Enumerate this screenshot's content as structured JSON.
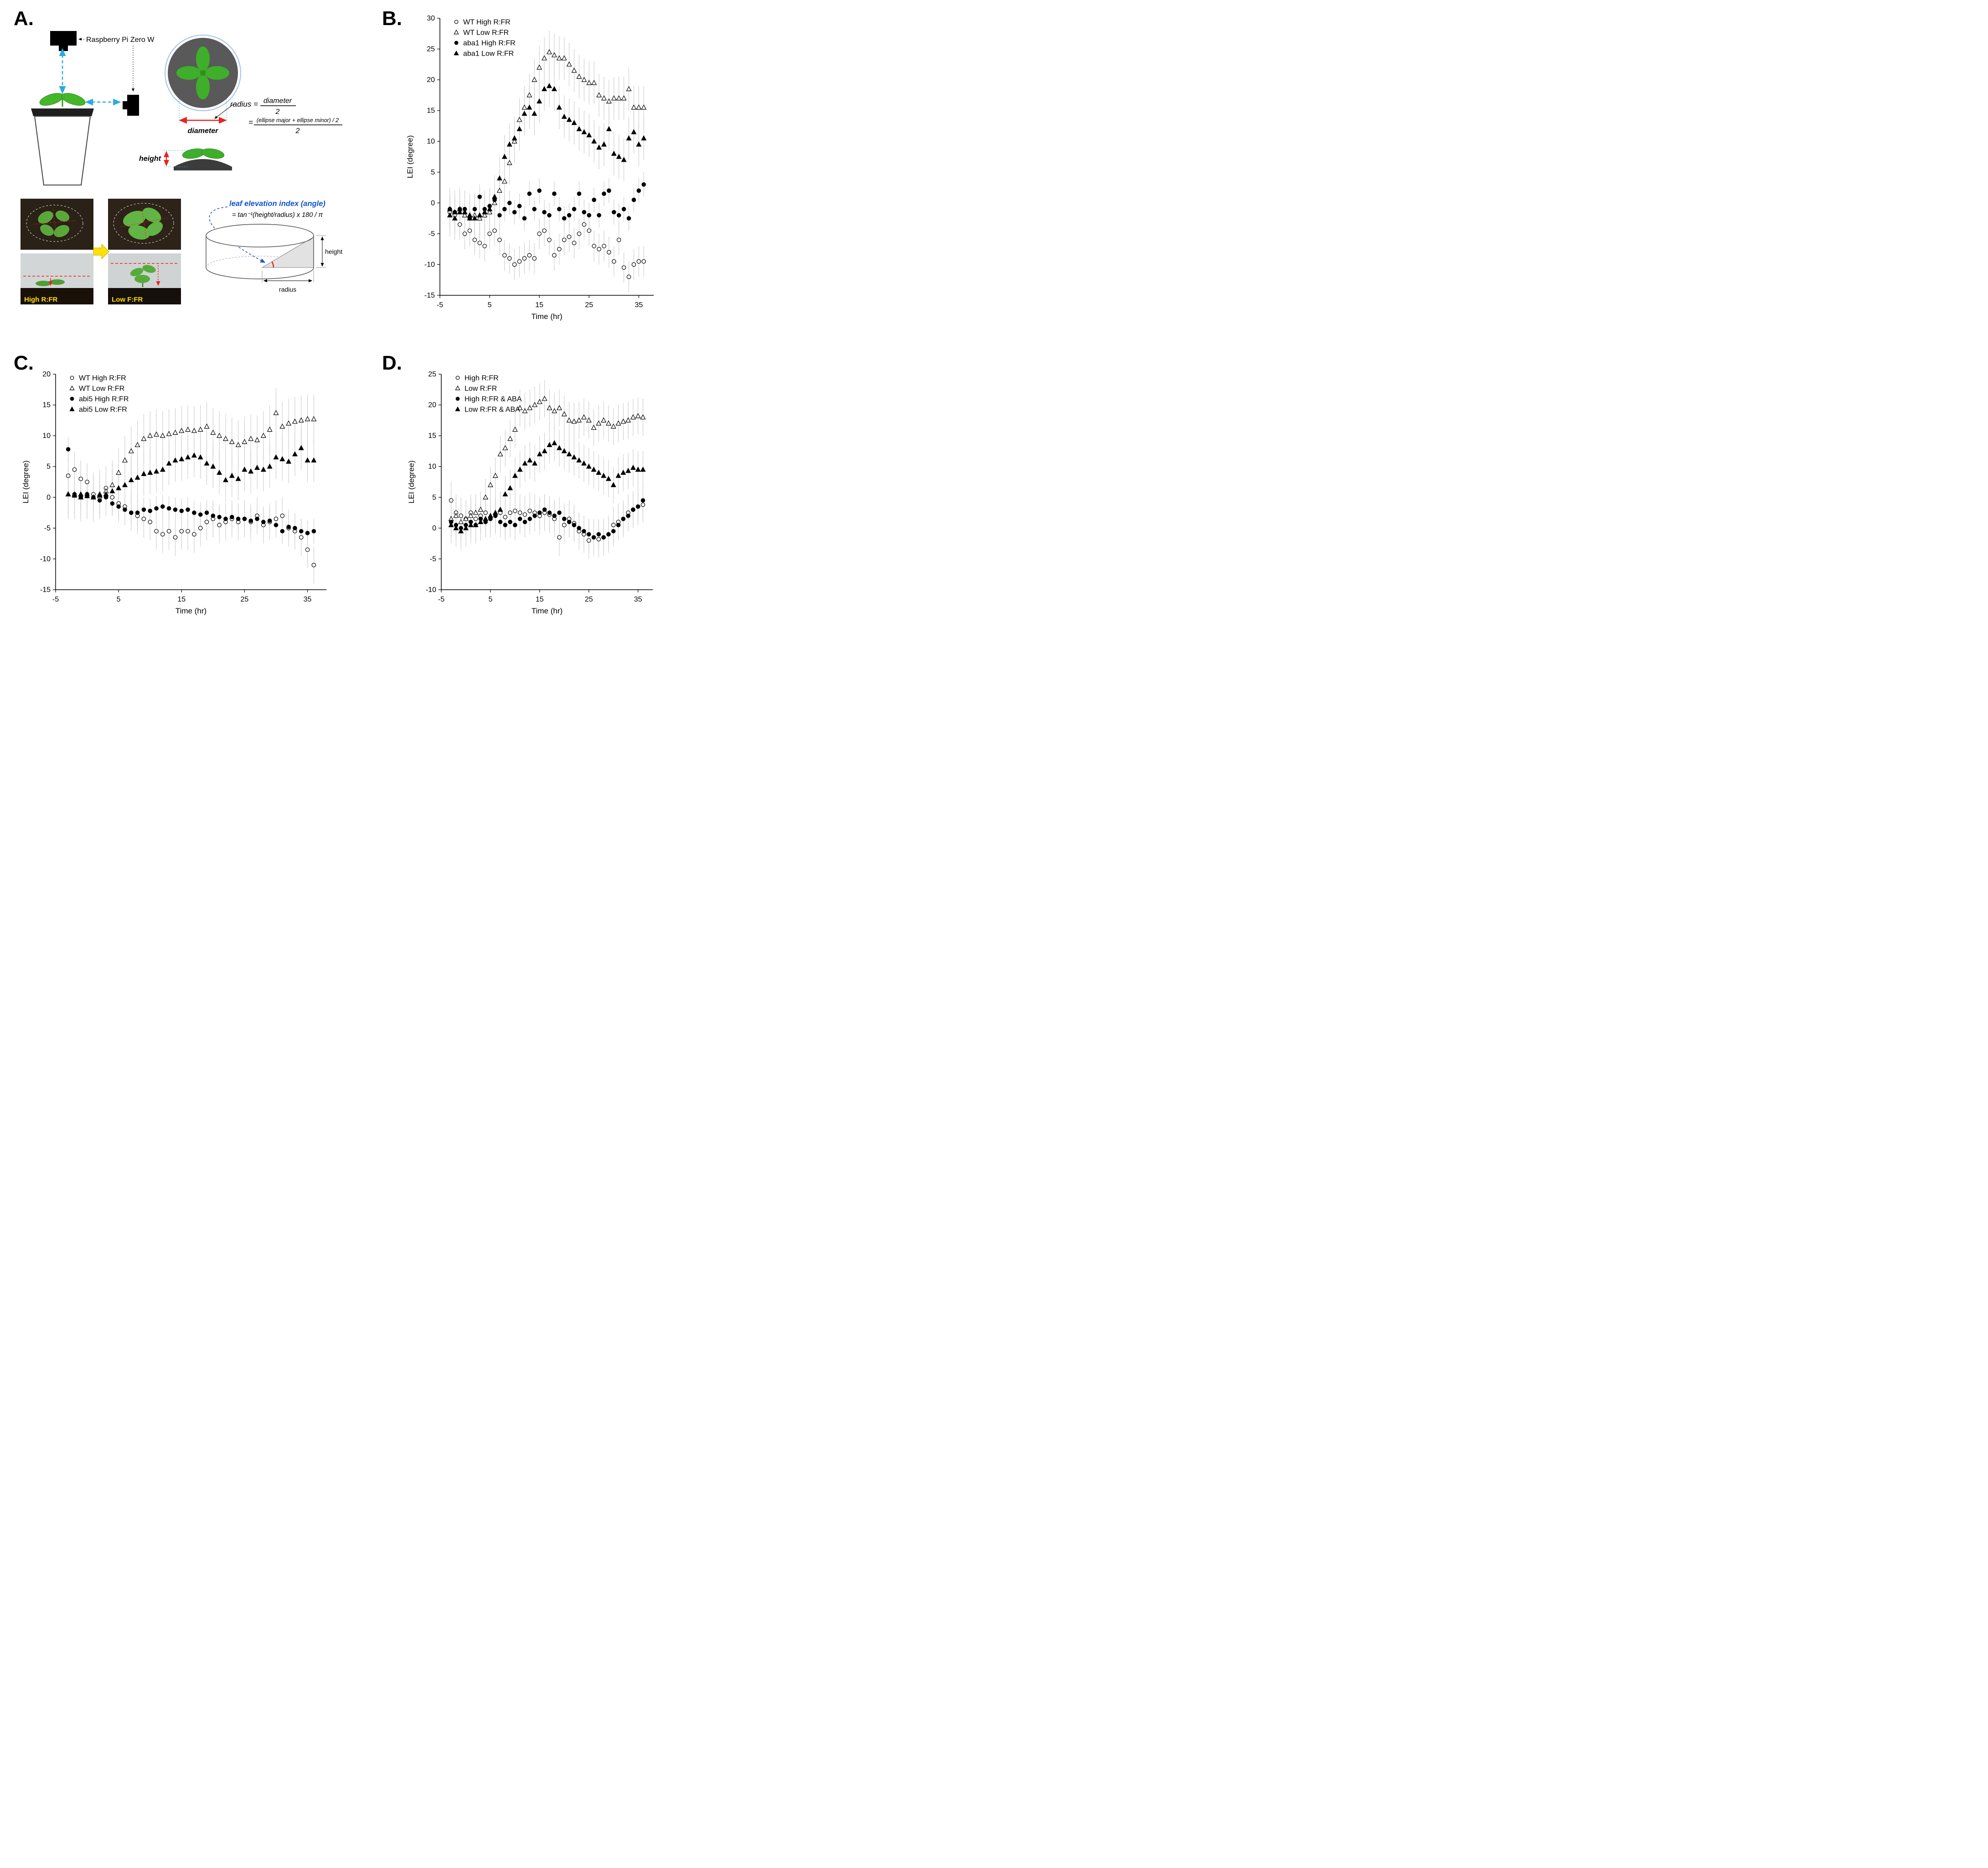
{
  "panel_labels": {
    "a": "A.",
    "b": "B.",
    "c": "C.",
    "d": "D."
  },
  "panel_a": {
    "camera_label": "Raspberry Pi Zero W",
    "radius_prefix": "radius =",
    "frac1_num": "diameter",
    "frac1_den": "2",
    "eq2_prefix": "=",
    "frac2_num": "(ellipse major + ellipse minor) / 2",
    "frac2_den": "2",
    "diameter_label": "diameter",
    "height_label": "height",
    "lei_title": "leaf elevation index (angle)",
    "lei_formula": "= tan⁻¹(height/radius)  x  180 / π",
    "photo_high_label": "High R:FR",
    "photo_low_label": "Low F:FR",
    "cyl_height_label": "height",
    "cyl_radius_label": "radius"
  },
  "chart_data": [
    {
      "id": "B",
      "type": "scatter",
      "xlabel": "Time (hr)",
      "ylabel": "LEI (degree)",
      "xlim": [
        -5,
        38
      ],
      "ylim": [
        -15,
        30
      ],
      "xticks": [
        -5,
        5,
        15,
        25,
        35
      ],
      "yticks": [
        -15,
        -10,
        -5,
        0,
        5,
        10,
        15,
        20,
        25,
        30
      ],
      "legend_position": "top-left",
      "grid": false,
      "x": [
        -3,
        -2,
        -1,
        0,
        1,
        2,
        3,
        4,
        5,
        6,
        7,
        8,
        9,
        10,
        11,
        12,
        13,
        14,
        15,
        16,
        17,
        18,
        19,
        20,
        21,
        22,
        23,
        24,
        25,
        26,
        27,
        28,
        29,
        30,
        31,
        32,
        33,
        34,
        35,
        36
      ],
      "series": [
        {
          "name": "WT High R:FR",
          "marker": "circle",
          "fill": "open",
          "err": 2.5,
          "y": [
            -1.5,
            -2,
            -3.5,
            -5,
            -4.5,
            -6,
            -6.5,
            -7,
            -5,
            -4.5,
            -6,
            -8.5,
            -9,
            -10,
            -9.5,
            -9,
            -8.5,
            -9,
            -5,
            -4.5,
            -6,
            -8.5,
            -7.5,
            -6,
            -5.5,
            -6.5,
            -5,
            -3.5,
            -4.5,
            -7,
            -7.5,
            -7,
            -8,
            -9.5,
            -6,
            -10.5,
            -12,
            -10,
            -9.5,
            -9.5
          ]
        },
        {
          "name": "WT Low R:FR",
          "marker": "triangle",
          "fill": "open",
          "err": 3.5,
          "y": [
            -1,
            -1.5,
            -1,
            -2,
            -2.5,
            -2,
            -2.5,
            -2,
            -1.5,
            0,
            2,
            3.5,
            6.5,
            10,
            13.5,
            15.5,
            17.5,
            20,
            22,
            23.5,
            24.5,
            24,
            23.5,
            23.5,
            22.5,
            21.5,
            20.5,
            20,
            19.5,
            19.5,
            17.5,
            17,
            16.5,
            17,
            17,
            17,
            18.5,
            15.5,
            15.5,
            15.5
          ]
        },
        {
          "name": "aba1 High R:FR",
          "marker": "circle",
          "fill": "solid",
          "err": 2,
          "y": [
            -1,
            -1.5,
            -1,
            -1,
            -2.5,
            -1,
            1,
            -1,
            -0.5,
            0.5,
            -2,
            -1,
            0,
            -1.5,
            -0.5,
            -2.5,
            1.5,
            -1,
            2,
            -1.5,
            -2,
            1.5,
            -1,
            -2.5,
            -2,
            -1,
            1.5,
            -1.5,
            -2,
            0.5,
            -2,
            1.5,
            2,
            -1.5,
            -2,
            -1,
            -2.5,
            0.5,
            2,
            3
          ]
        },
        {
          "name": "aba1 Low R:FR",
          "marker": "triangle",
          "fill": "solid",
          "err": 3.5,
          "y": [
            -2,
            -2.5,
            -1.5,
            -1.5,
            -2,
            -2.5,
            -2,
            -1.5,
            -1,
            1,
            4,
            7.5,
            9.5,
            10.5,
            12,
            14.5,
            15.5,
            14.5,
            16.5,
            18.5,
            19,
            18.5,
            15.5,
            14,
            13.5,
            13,
            12,
            11.5,
            11,
            10,
            9,
            9.5,
            12,
            8,
            7.5,
            7,
            10.5,
            11.5,
            9.5,
            10.5
          ]
        }
      ]
    },
    {
      "id": "C",
      "type": "scatter",
      "xlabel": "Time (hr)",
      "ylabel": "LEI (degree)",
      "xlim": [
        -5,
        38
      ],
      "ylim": [
        -15,
        20
      ],
      "xticks": [
        -5,
        5,
        15,
        25,
        35
      ],
      "yticks": [
        -15,
        -10,
        -5,
        0,
        5,
        10,
        15,
        20
      ],
      "legend_position": "top-left",
      "grid": false,
      "x": [
        -3,
        -2,
        -1,
        0,
        1,
        2,
        3,
        4,
        5,
        6,
        7,
        8,
        9,
        10,
        11,
        12,
        13,
        14,
        15,
        16,
        17,
        18,
        19,
        20,
        21,
        22,
        23,
        24,
        25,
        26,
        27,
        28,
        29,
        30,
        31,
        32,
        33,
        34,
        35,
        36
      ],
      "series": [
        {
          "name": "WT High R:FR",
          "marker": "circle",
          "fill": "open",
          "err": 3,
          "y": [
            3.5,
            4.5,
            3,
            2.5,
            0.5,
            0,
            1.5,
            0,
            -1,
            -1.5,
            -2.5,
            -3,
            -3.5,
            -4,
            -5.5,
            -6,
            -5.5,
            -6.5,
            -5.5,
            -5.5,
            -6,
            -5,
            -4,
            -3.5,
            -4.5,
            -4,
            -3.5,
            -4,
            -3.5,
            -4,
            -3,
            -4.5,
            -4,
            -3.5,
            -3,
            -5,
            -5.5,
            -6.5,
            -8.5,
            -11
          ]
        },
        {
          "name": "WT Low R:FR",
          "marker": "triangle",
          "fill": "open",
          "err": 4,
          "y": [
            0.5,
            0.5,
            0,
            0.5,
            0,
            0.5,
            1,
            2,
            4,
            6,
            7.5,
            8.5,
            9.5,
            10,
            10.2,
            10,
            10.3,
            10.5,
            10.8,
            11,
            10.8,
            11,
            11.5,
            10.5,
            10,
            9.5,
            9,
            8.5,
            9,
            9.5,
            9.3,
            10,
            11,
            13.7,
            11.5,
            12,
            12.3,
            12.5,
            12.7,
            12.7
          ]
        },
        {
          "name": "abi5 High R:FR",
          "marker": "circle",
          "fill": "solid",
          "err": 2,
          "y": [
            7.8,
            0.5,
            0,
            0.5,
            0,
            -0.5,
            0,
            -1,
            -1.5,
            -2,
            -2.5,
            -2.5,
            -2,
            -2.2,
            -1.8,
            -1.5,
            -1.8,
            -2,
            -2.2,
            -2,
            -2.5,
            -2.8,
            -2.5,
            -3,
            -3.2,
            -3.5,
            -3.2,
            -3.5,
            -3.5,
            -3.8,
            -3.5,
            -4,
            -3.8,
            -4.5,
            -5.5,
            -4.8,
            -5,
            -5.5,
            -5.8,
            -5.5
          ]
        },
        {
          "name": "abi5 Low R:FR",
          "marker": "triangle",
          "fill": "solid",
          "err": 3.5,
          "y": [
            0.5,
            0.3,
            0.5,
            0.2,
            0,
            0.3,
            0.5,
            1,
            1.5,
            2,
            2.8,
            3.2,
            3.8,
            4,
            4.2,
            4.5,
            5.5,
            6,
            6.2,
            6.5,
            6.8,
            6.5,
            5.5,
            5,
            4,
            2.8,
            3.5,
            3,
            4.5,
            4.2,
            4.8,
            4.5,
            5,
            6.5,
            6.2,
            5.8,
            7,
            8,
            6,
            6
          ]
        }
      ]
    },
    {
      "id": "D",
      "type": "scatter",
      "xlabel": "Time (hr)",
      "ylabel": "LEI (degree)",
      "xlim": [
        -5,
        38
      ],
      "ylim": [
        -10,
        25
      ],
      "xticks": [
        -5,
        5,
        15,
        25,
        35
      ],
      "yticks": [
        -10,
        -5,
        0,
        5,
        10,
        15,
        20,
        25
      ],
      "legend_position": "top-left",
      "grid": false,
      "x": [
        -3,
        -2,
        -1,
        0,
        1,
        2,
        3,
        4,
        5,
        6,
        7,
        8,
        9,
        10,
        11,
        12,
        13,
        14,
        15,
        16,
        17,
        18,
        19,
        20,
        21,
        22,
        23,
        24,
        25,
        26,
        27,
        28,
        29,
        30,
        31,
        32,
        33,
        34,
        35,
        36
      ],
      "series": [
        {
          "name": "High R:FR",
          "marker": "circle",
          "fill": "open",
          "err": 3,
          "y": [
            4.5,
            2.5,
            2,
            1.5,
            2.5,
            1.5,
            2,
            2.5,
            1.5,
            2,
            2.5,
            1.8,
            2.5,
            2.8,
            2.5,
            2.2,
            2.8,
            2.5,
            2,
            2.5,
            2.2,
            1.5,
            -1.5,
            0.5,
            1.5,
            0.8,
            -0.5,
            -1,
            -2,
            -1.5,
            -1.8,
            -1.5,
            -1,
            0.5,
            1,
            1.5,
            2.5,
            3,
            3.5,
            3.8
          ]
        },
        {
          "name": "Low R:FR",
          "marker": "triangle",
          "fill": "open",
          "err": 3,
          "y": [
            1.5,
            2,
            1,
            1.5,
            2,
            2.5,
            3,
            5,
            7,
            8.5,
            12,
            13,
            14.5,
            16,
            19.5,
            19,
            19.5,
            20,
            20.5,
            21,
            19.5,
            19,
            19.5,
            18.5,
            17.5,
            17.3,
            17.5,
            18,
            17.5,
            16.3,
            17,
            17.5,
            17,
            16.5,
            17,
            17.3,
            17.5,
            18,
            18.2,
            18
          ]
        },
        {
          "name": "High R:FR & ABA",
          "marker": "circle",
          "fill": "solid",
          "err": 2.5,
          "y": [
            1,
            0.5,
            0,
            0.5,
            1,
            0.5,
            1.5,
            1,
            1.5,
            2,
            1,
            0.5,
            1,
            0.5,
            1.5,
            1,
            1.5,
            2,
            2.5,
            3,
            2.5,
            2,
            2.5,
            1.5,
            1,
            0.5,
            0,
            -0.5,
            -1,
            -1.5,
            -1,
            -1.5,
            -1,
            -0.5,
            0.5,
            1.5,
            2,
            3,
            3.5,
            4.5
          ]
        },
        {
          "name": "Low R:FR & ABA",
          "marker": "triangle",
          "fill": "solid",
          "err": 3,
          "y": [
            0.5,
            0,
            -0.5,
            0,
            0.5,
            0.5,
            1,
            1.5,
            2,
            2.5,
            3,
            5.5,
            6.5,
            8.5,
            9.5,
            10.5,
            11,
            10.5,
            12,
            12.5,
            13.5,
            13.8,
            13,
            12.5,
            12,
            11.5,
            11,
            10.5,
            10,
            9.5,
            9,
            8.5,
            8,
            7,
            8.5,
            9,
            9.3,
            9.8,
            9.5,
            9.5
          ]
        }
      ]
    }
  ],
  "colors": {
    "error_bar": "#c6c6c6",
    "leaf_green": "#3fae2a",
    "highlight_yellow": "#ffe000",
    "measure_red": "#e8241e",
    "camera_arrow_cyan": "#29abe2",
    "lei_blue": "#1155cc"
  }
}
